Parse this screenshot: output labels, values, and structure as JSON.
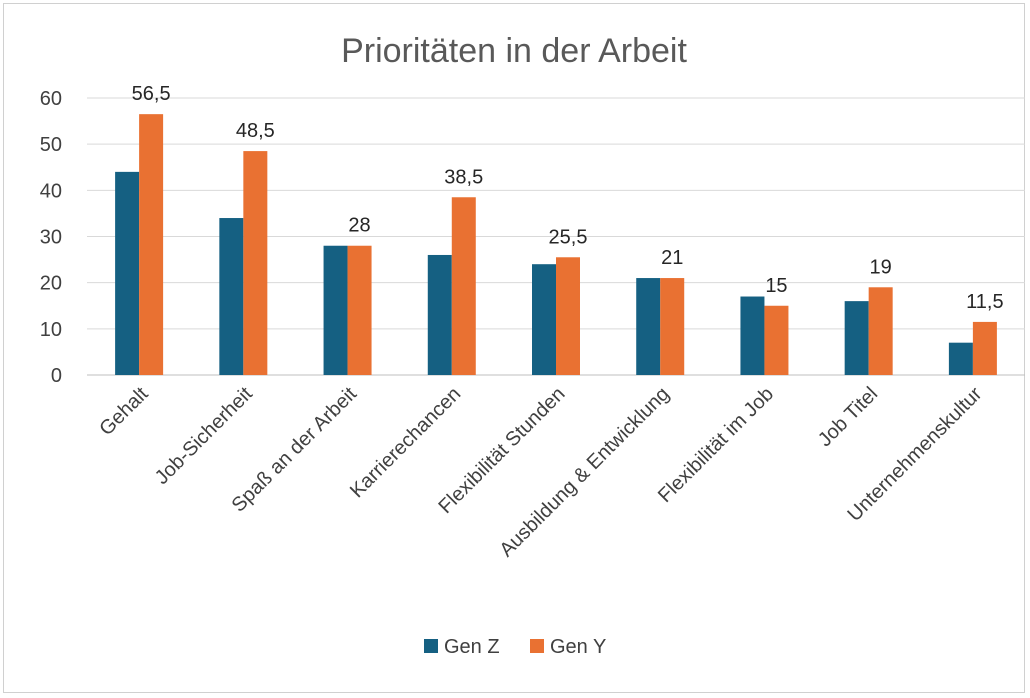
{
  "chart_data": {
    "type": "bar",
    "title": "Prioritäten in der Arbeit",
    "xlabel": "",
    "ylabel": "",
    "ylim": [
      0,
      60
    ],
    "yticks": [
      0,
      10,
      20,
      30,
      40,
      50,
      60
    ],
    "grid": true,
    "legend_position": "bottom",
    "categories": [
      "Gehalt",
      "Job-Sicherheit",
      "Spaß an der Arbeit",
      "Karrierechancen",
      "Flexibilität Stunden",
      "Ausbildung & Entwicklung",
      "Flexibilität im Job",
      "Job Titel",
      "Unternehmenskultur"
    ],
    "series": [
      {
        "name": "Gen Z",
        "color": "#156082",
        "values": [
          44,
          34,
          28,
          26,
          24,
          21,
          17,
          16,
          7
        ]
      },
      {
        "name": "Gen Y",
        "color": "#E97132",
        "values": [
          56.5,
          48.5,
          28,
          38.5,
          25.5,
          21,
          15,
          19,
          11.5
        ],
        "data_labels": [
          "56,5",
          "48,5",
          "28",
          "38,5",
          "25,5",
          "21",
          "15",
          "19",
          "11,5"
        ]
      }
    ]
  }
}
